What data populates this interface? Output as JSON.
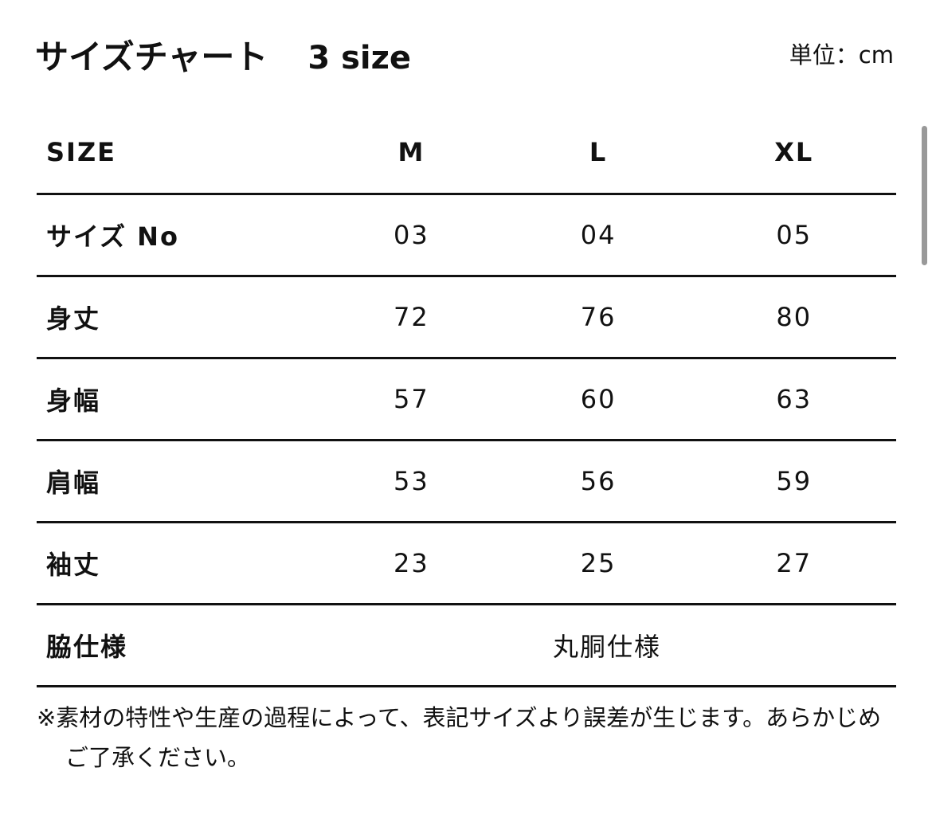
{
  "title": "サイズチャート",
  "size_count": "3 size",
  "unit": "単位：cm",
  "headers": [
    "SIZE",
    "M",
    "L",
    "XL"
  ],
  "rows": [
    [
      "サイズ No",
      "03",
      "04",
      "05"
    ],
    [
      "身丈",
      "72",
      "76",
      "80"
    ],
    [
      "身幅",
      "57",
      "60",
      "63"
    ],
    [
      "肩幅",
      "53",
      "56",
      "59"
    ],
    [
      "袖丈",
      "23",
      "25",
      "27"
    ]
  ],
  "side": {
    "label": "脇仕様",
    "value": "丸胴仕様"
  },
  "note": "※素材の特性や生産の過程によって、表記サイズより誤差が生じます。あらかじめご了承ください。"
}
